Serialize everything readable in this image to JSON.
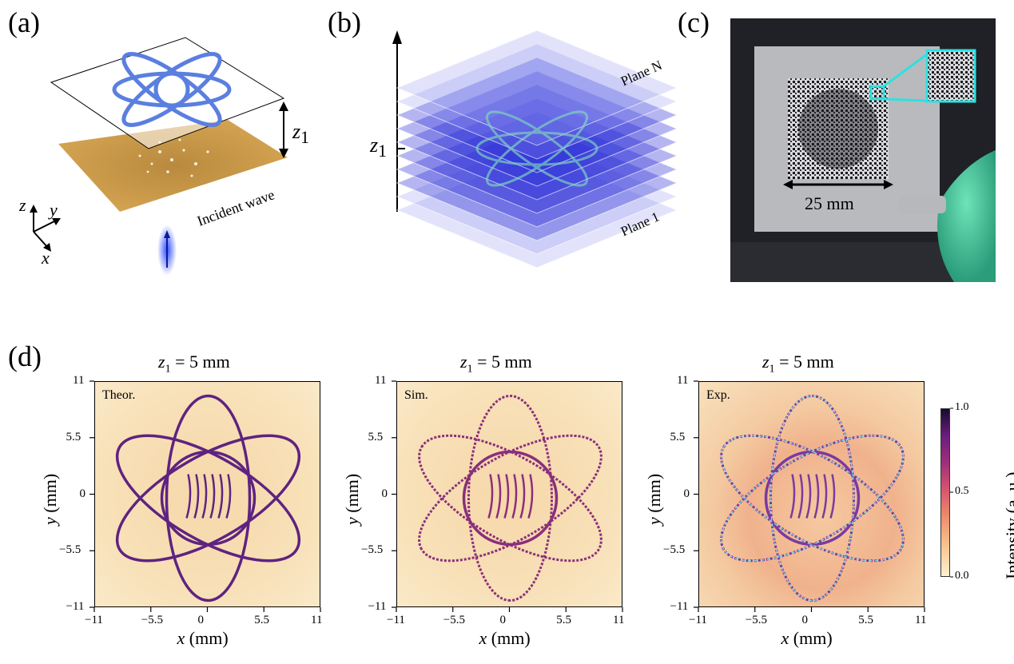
{
  "panels": {
    "a": "(a)",
    "b": "(b)",
    "c": "(c)",
    "d": "(d)"
  },
  "panel_a": {
    "z_var": "z",
    "z_sub": "1",
    "axis_z": "z",
    "axis_y": "y",
    "axis_x": "x",
    "incident": "Incident wave"
  },
  "panel_b": {
    "z_var": "z",
    "z_sub": "1",
    "plane_n": "Plane N",
    "plane_1": "Plane 1"
  },
  "panel_c": {
    "scale": "25 mm"
  },
  "heatmaps": [
    {
      "tag": "Theor.",
      "title_var": "z",
      "title_sub": "1",
      "title_rest": " = 5 mm",
      "xlabel": "x (mm)",
      "ylabel": "y (mm)"
    },
    {
      "tag": "Sim.",
      "title_var": "z",
      "title_sub": "1",
      "title_rest": " = 5 mm",
      "xlabel": "x (mm)",
      "ylabel": "y (mm)"
    },
    {
      "tag": "Exp.",
      "title_var": "z",
      "title_sub": "1",
      "title_rest": " = 5 mm",
      "xlabel": "x (mm)",
      "ylabel": "y (mm)"
    }
  ],
  "ticks": [
    "−11",
    "−5.5",
    "0",
    "5.5",
    "11"
  ],
  "colorbar": {
    "label": "Intensity (a. u.)",
    "max": "1.0",
    "mid": "0.5",
    "min": "0.0"
  },
  "colors": {
    "sand": "#c99a4a",
    "hologram_blue": "#5b7fe0",
    "plane_blue": "#2a2fd8",
    "cyan": "#2fe0e0",
    "pattern_dark": "#4a1a70",
    "background_warm": "#f6d9a8"
  },
  "chart_data": {
    "type": "heatmap",
    "xlim": [
      -11,
      11
    ],
    "ylim": [
      -11,
      11
    ],
    "xticks": [
      -11,
      -5.5,
      0,
      5.5,
      11
    ],
    "yticks": [
      -11,
      -5.5,
      0,
      5.5,
      11
    ],
    "colorbar_range": [
      0.0,
      1.0
    ],
    "colorbar_ticks": [
      0.0,
      0.5,
      1.0
    ],
    "colormap": "magma_r",
    "panels": [
      "Theor.",
      "Sim.",
      "Exp."
    ]
  }
}
